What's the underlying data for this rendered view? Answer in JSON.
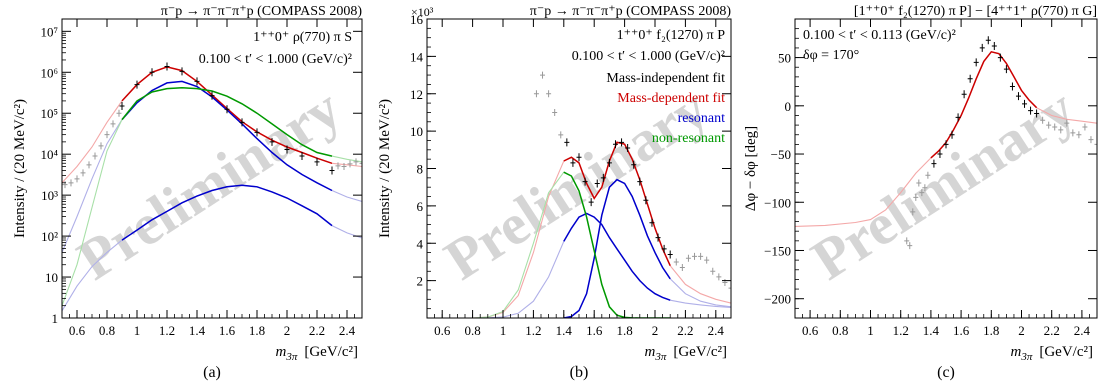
{
  "colors": {
    "mass_dependent": "#cc0000",
    "resonant": "#0000cc",
    "non_resonant": "#009900",
    "data_points": "#000000",
    "data_outside": "#999999",
    "faded_red": "#f4a8a8",
    "faded_green": "#a8e0a8",
    "faded_blue": "#b0b0e8",
    "watermark": "#c8c8c8"
  },
  "watermark": "Preliminary",
  "chart_data": [
    {
      "type": "line",
      "panel_label": "(a)",
      "title": "π⁻p → π⁻π⁻π⁺p (COMPASS 2008)",
      "wave": "1⁺⁺0⁺ ρ(770) π S",
      "t_range": "0.100 < t′ < 1.000 (GeV/c)²",
      "xlabel_sym": "m",
      "xlabel_sub": "3π",
      "xlabel_unit": "[GeV/c²]",
      "ylabel": "Intensity / (20 MeV/c²)",
      "log_y": true,
      "xlim": [
        0.5,
        2.5
      ],
      "ylim": [
        1,
        20000000
      ],
      "xticks": [
        "0.6",
        "0.8",
        "1",
        "1.2",
        "1.4",
        "1.6",
        "1.8",
        "2",
        "2.2",
        "2.4"
      ],
      "yticks": [
        "1",
        "10",
        "10²",
        "10³",
        "10⁴",
        "10⁵",
        "10⁶",
        "10⁷"
      ],
      "fit_range": [
        0.9,
        2.3
      ],
      "curves": [
        {
          "role": "mass-dependent",
          "x": [
            0.5,
            0.6,
            0.7,
            0.8,
            0.9,
            1.0,
            1.1,
            1.2,
            1.3,
            1.4,
            1.5,
            1.6,
            1.7,
            1.8,
            1.9,
            2.0,
            2.1,
            2.2,
            2.3,
            2.4,
            2.5
          ],
          "y": [
            2000,
            5000,
            15000,
            60000,
            200000,
            500000,
            1000000,
            1350000,
            1100000,
            600000,
            280000,
            130000,
            62000,
            35000,
            22000,
            15000,
            11000,
            8000,
            6000,
            5500,
            5000
          ]
        },
        {
          "role": "resonant",
          "x": [
            0.5,
            0.6,
            0.7,
            0.8,
            0.9,
            1.0,
            1.1,
            1.2,
            1.3,
            1.4,
            1.5,
            1.6,
            1.7,
            1.8,
            1.9,
            2.0,
            2.1,
            2.2,
            2.3,
            2.4,
            2.5
          ],
          "y": [
            40,
            300,
            2500,
            18000,
            70000,
            180000,
            360000,
            550000,
            600000,
            450000,
            250000,
            120000,
            55000,
            24000,
            11000,
            5500,
            3200,
            2000,
            1300,
            900,
            700
          ]
        },
        {
          "role": "resonant",
          "x": [
            0.5,
            0.6,
            0.7,
            0.8,
            0.9,
            1.0,
            1.1,
            1.2,
            1.3,
            1.4,
            1.5,
            1.6,
            1.7,
            1.8,
            1.9,
            2.0,
            2.1,
            2.2,
            2.3,
            2.4,
            2.5
          ],
          "y": [
            1.5,
            6,
            18,
            40,
            80,
            140,
            250,
            400,
            650,
            950,
            1300,
            1600,
            1750,
            1600,
            1200,
            850,
            550,
            350,
            180,
            120,
            90
          ]
        },
        {
          "role": "non-resonant",
          "x": [
            0.5,
            0.6,
            0.7,
            0.8,
            0.9,
            1.0,
            1.1,
            1.2,
            1.3,
            1.4,
            1.5,
            1.6,
            1.7,
            1.8,
            1.9,
            2.0,
            2.1,
            2.2,
            2.3,
            2.4,
            2.5
          ],
          "y": [
            2,
            20,
            500,
            12000,
            70000,
            200000,
            330000,
            400000,
            420000,
            400000,
            350000,
            260000,
            170000,
            100000,
            55000,
            30000,
            17000,
            11000,
            9000,
            7500,
            6500
          ]
        }
      ],
      "points_mass_independent": {
        "x": [
          0.52,
          0.56,
          0.6,
          0.64,
          0.68,
          0.72,
          0.76,
          0.8,
          0.84,
          0.88,
          0.9,
          1.0,
          1.1,
          1.2,
          1.3,
          1.4,
          1.5,
          1.6,
          1.7,
          1.8,
          1.9,
          2.0,
          2.1,
          2.2,
          2.3,
          2.34,
          2.38,
          2.42,
          2.46,
          2.5
        ],
        "y": [
          1800,
          2000,
          2500,
          3500,
          5500,
          9000,
          16000,
          30000,
          55000,
          100000,
          150000,
          500000,
          1000000,
          1380000,
          1050000,
          600000,
          270000,
          125000,
          60000,
          34000,
          20000,
          13000,
          9000,
          6500,
          4000,
          5200,
          5000,
          5800,
          6500,
          6000
        ]
      }
    },
    {
      "type": "line",
      "panel_label": "(b)",
      "title": "π⁻p → π⁻π⁻π⁺p (COMPASS 2008)",
      "wave": "1⁺⁺0⁺ f₂(1270) π P",
      "t_range": "0.100 < t′ < 1.000 (GeV/c)²",
      "xlabel_sym": "m",
      "xlabel_sub": "3π",
      "xlabel_unit": "[GeV/c²]",
      "ylabel": "Intensity / (20 MeV/c²)",
      "y_multiplier": "×10³",
      "xlim": [
        0.5,
        2.5
      ],
      "ylim": [
        0,
        16000
      ],
      "xticks": [
        "0.6",
        "0.8",
        "1",
        "1.2",
        "1.4",
        "1.6",
        "1.8",
        "2",
        "2.2",
        "2.4"
      ],
      "yticks": [
        "2",
        "4",
        "6",
        "8",
        "10",
        "12",
        "14",
        "16"
      ],
      "legend": [
        "Mass-independent fit",
        "Mass-dependent fit",
        "resonant",
        "non-resonant"
      ],
      "fit_range": [
        1.4,
        2.1
      ],
      "curves": [
        {
          "role": "mass-dependent",
          "x": [
            0.8,
            0.9,
            1.0,
            1.1,
            1.2,
            1.3,
            1.4,
            1.45,
            1.5,
            1.55,
            1.6,
            1.65,
            1.7,
            1.75,
            1.8,
            1.85,
            1.9,
            1.95,
            2.0,
            2.05,
            2.1,
            2.2,
            2.3,
            2.4,
            2.5
          ],
          "y": [
            0,
            50,
            300,
            1200,
            3500,
            6500,
            8400,
            8600,
            8300,
            7200,
            6400,
            7000,
            8400,
            9400,
            9300,
            8500,
            7400,
            6100,
            4800,
            3700,
            2800,
            1800,
            1300,
            1000,
            800
          ]
        },
        {
          "role": "resonant",
          "x": [
            0.8,
            0.9,
            1.0,
            1.1,
            1.2,
            1.3,
            1.4,
            1.45,
            1.5,
            1.55,
            1.6,
            1.65,
            1.7,
            1.75,
            1.8,
            1.85,
            1.9,
            1.95,
            2.0,
            2.05,
            2.1,
            2.2,
            2.3,
            2.4,
            2.5
          ],
          "y": [
            0,
            10,
            50,
            250,
            900,
            2200,
            4100,
            4800,
            5400,
            5600,
            5400,
            5000,
            4300,
            3700,
            3100,
            2500,
            2000,
            1600,
            1300,
            1100,
            950,
            800,
            700,
            620,
            560
          ]
        },
        {
          "role": "resonant",
          "x": [
            0.8,
            0.9,
            1.0,
            1.1,
            1.2,
            1.3,
            1.4,
            1.45,
            1.5,
            1.55,
            1.6,
            1.65,
            1.7,
            1.75,
            1.8,
            1.85,
            1.9,
            1.95,
            2.0,
            2.05,
            2.1,
            2.2,
            2.3,
            2.4,
            2.5
          ],
          "y": [
            0,
            0,
            0,
            0,
            0,
            0,
            0,
            80,
            400,
            1300,
            3200,
            5500,
            7000,
            7400,
            7200,
            6500,
            5500,
            4400,
            3500,
            2700,
            2100,
            1300,
            900,
            700,
            600
          ]
        },
        {
          "role": "non-resonant",
          "x": [
            0.8,
            0.9,
            1.0,
            1.1,
            1.2,
            1.3,
            1.4,
            1.45,
            1.5,
            1.55,
            1.6,
            1.65,
            1.7,
            1.75,
            1.8,
            1.85,
            1.9,
            1.95,
            2.0,
            2.05,
            2.1,
            2.2,
            2.3,
            2.4,
            2.5
          ],
          "y": [
            0,
            50,
            350,
            1500,
            4000,
            6700,
            7800,
            7600,
            6800,
            5400,
            3600,
            1800,
            600,
            150,
            30,
            5,
            0,
            0,
            0,
            0,
            0,
            0,
            0,
            0,
            0
          ]
        }
      ],
      "points_mass_independent": {
        "x": [
          1.22,
          1.26,
          1.3,
          1.34,
          1.38,
          1.42,
          1.46,
          1.5,
          1.54,
          1.58,
          1.62,
          1.66,
          1.7,
          1.74,
          1.78,
          1.82,
          1.86,
          1.9,
          1.94,
          1.98,
          2.02,
          2.06,
          2.1,
          2.14,
          2.18,
          2.22,
          2.26,
          2.3,
          2.34,
          2.38,
          2.42,
          2.46,
          2.5
        ],
        "y": [
          12000,
          13000,
          12000,
          11000,
          9800,
          9400,
          8300,
          8600,
          7300,
          6200,
          7200,
          7500,
          8300,
          9300,
          9400,
          9100,
          8200,
          7300,
          6300,
          5100,
          4300,
          3700,
          3400,
          3000,
          2700,
          3200,
          3300,
          3300,
          3100,
          2500,
          2200,
          1900,
          1600
        ]
      }
    },
    {
      "type": "line",
      "panel_label": "(c)",
      "title": "[1⁺⁺0⁺ f₂(1270) π P] − [4⁺⁺1⁺ ρ(770) π G]",
      "t_range": "0.100 < t′ < 0.113 (GeV/c)²",
      "delta_phi": "δφ = 170°",
      "xlabel_sym": "m",
      "xlabel_sub": "3π",
      "xlabel_unit": "[GeV/c²]",
      "ylabel": "Δφ − δφ [deg]",
      "xlim": [
        0.5,
        2.5
      ],
      "ylim": [
        -220,
        90
      ],
      "xticks": [
        "0.6",
        "0.8",
        "1",
        "1.2",
        "1.4",
        "1.6",
        "1.8",
        "2",
        "2.2",
        "2.4"
      ],
      "yticks": [
        "−200",
        "−150",
        "−100",
        "−50",
        "0",
        "50"
      ],
      "fit_range": [
        1.4,
        2.1
      ],
      "curves": [
        {
          "role": "mass-dependent",
          "x": [
            0.5,
            0.7,
            0.9,
            1.0,
            1.1,
            1.2,
            1.3,
            1.4,
            1.45,
            1.5,
            1.55,
            1.6,
            1.65,
            1.7,
            1.75,
            1.8,
            1.85,
            1.9,
            1.95,
            2.0,
            2.05,
            2.1,
            2.2,
            2.3,
            2.4,
            2.5
          ],
          "y": [
            -125,
            -124,
            -121,
            -118,
            -108,
            -90,
            -70,
            -54,
            -47,
            -38,
            -25,
            -10,
            8,
            28,
            46,
            56,
            54,
            44,
            30,
            16,
            6,
            -2,
            -10,
            -14,
            -16,
            -18
          ]
        }
      ],
      "points_mass_independent": {
        "x": [
          1.24,
          1.26,
          1.28,
          1.3,
          1.32,
          1.34,
          1.36,
          1.38,
          1.42,
          1.46,
          1.5,
          1.54,
          1.58,
          1.62,
          1.66,
          1.7,
          1.74,
          1.78,
          1.82,
          1.86,
          1.9,
          1.94,
          1.98,
          2.02,
          2.06,
          2.1,
          2.14,
          2.18,
          2.22,
          2.26,
          2.3,
          2.34,
          2.38,
          2.42,
          2.46,
          2.5
        ],
        "y": [
          -140,
          -145,
          -110,
          -95,
          -80,
          -90,
          -85,
          -72,
          -60,
          -50,
          -40,
          -30,
          -12,
          12,
          28,
          45,
          60,
          68,
          62,
          50,
          38,
          20,
          10,
          2,
          -5,
          -8,
          -15,
          -20,
          -22,
          -25,
          -18,
          -28,
          -30,
          -22,
          -35,
          -40
        ]
      }
    }
  ]
}
